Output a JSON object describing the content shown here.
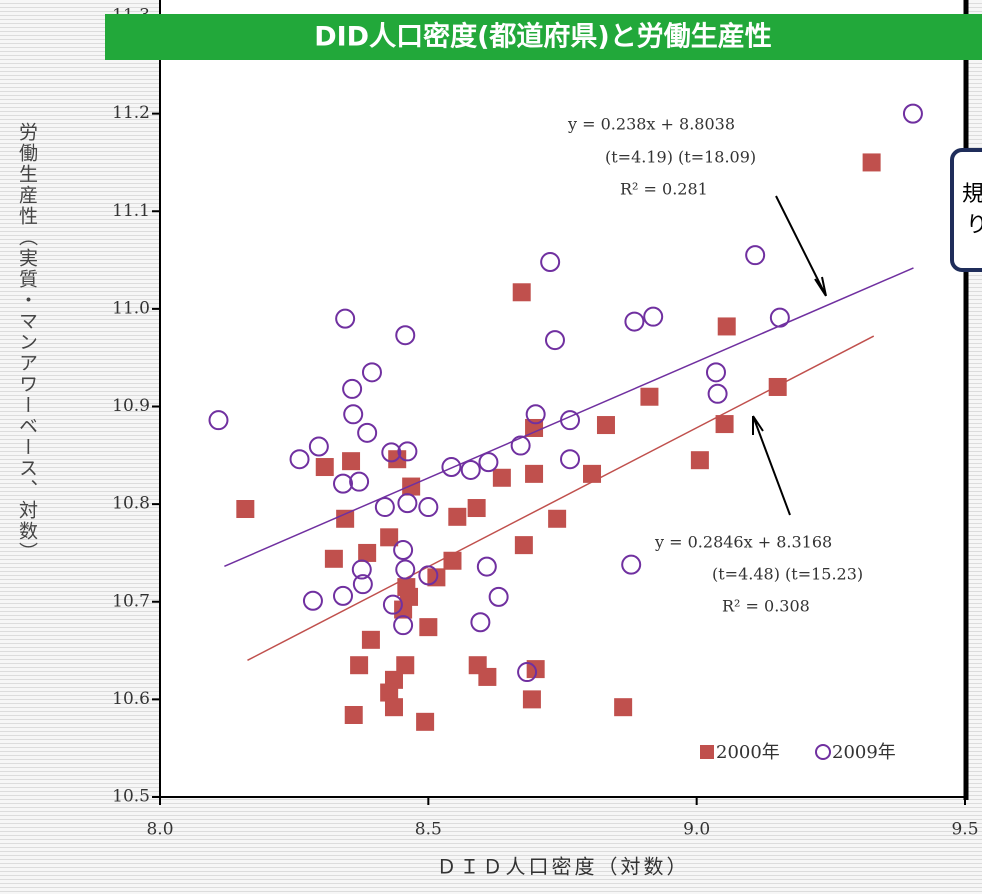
{
  "chart_data": {
    "type": "scatter",
    "title": "DID人口密度(都道府県)と労働生産性",
    "x_label": "ＤＩＤ人口密度（対数）",
    "y_label": "労働生産性（実質・マンアワーベース、対数）",
    "xlim": [
      8.0,
      9.5
    ],
    "xticks": [
      {
        "value": 8.0,
        "label": "8.0"
      },
      8.5,
      {
        "value": 9.0,
        "label": "9.0"
      },
      9.5
    ],
    "ylim": [
      10.5,
      11.3
    ],
    "yticks": [
      10.5,
      10.6,
      10.7,
      10.8,
      10.9,
      {
        "value": 11.0,
        "label": "11.0"
      },
      11.1,
      11.2,
      11.3
    ],
    "series": [
      {
        "name": "2000年",
        "color": "#c0504d",
        "marker": "square",
        "x": [
          8.159,
          8.307,
          8.356,
          8.345,
          8.324,
          8.386,
          8.427,
          8.442,
          8.468,
          8.464,
          8.459,
          8.453,
          8.393,
          8.371,
          8.457,
          8.436,
          8.427,
          8.436,
          8.361,
          8.494,
          8.5,
          8.515,
          8.545,
          8.554,
          8.59,
          8.637,
          8.592,
          8.61,
          8.674,
          8.678,
          8.697,
          8.697,
          8.7,
          8.693,
          8.74,
          8.805,
          8.831,
          8.863,
          8.912,
          9.006,
          9.052,
          9.056,
          9.151,
          9.326
        ],
        "values": [
          10.795,
          10.838,
          10.844,
          10.785,
          10.744,
          10.75,
          10.766,
          10.846,
          10.818,
          10.705,
          10.715,
          10.692,
          10.661,
          10.635,
          10.635,
          10.62,
          10.607,
          10.592,
          10.584,
          10.577,
          10.674,
          10.725,
          10.742,
          10.787,
          10.796,
          10.827,
          10.635,
          10.623,
          11.017,
          10.758,
          10.831,
          10.878,
          10.631,
          10.6,
          10.785,
          10.831,
          10.881,
          10.592,
          10.91,
          10.845,
          10.882,
          10.982,
          10.92,
          11.15
        ],
        "trendline": {
          "slope": 0.2846,
          "intercept": 8.3168,
          "x": [
            8.163,
            9.33
          ],
          "labels": [
            "y = 0.2846x + 8.3168",
            "(t=4.48)  (t=15.23)",
            "R² = 0.308"
          ]
        }
      },
      {
        "name": "2009年",
        "color": "#7030a0",
        "marker": "circle",
        "x": [
          8.109,
          8.26,
          8.296,
          8.285,
          8.345,
          8.341,
          8.341,
          8.358,
          8.36,
          8.371,
          8.386,
          8.395,
          8.376,
          8.378,
          8.419,
          8.431,
          8.461,
          8.457,
          8.461,
          8.453,
          8.457,
          8.434,
          8.453,
          8.5,
          8.5,
          8.543,
          8.579,
          8.612,
          8.609,
          8.631,
          8.597,
          8.672,
          8.7,
          8.727,
          8.736,
          8.764,
          8.764,
          8.684,
          8.884,
          8.919,
          8.878,
          9.036,
          9.039,
          9.109,
          9.155,
          9.403
        ],
        "values": [
          10.886,
          10.846,
          10.859,
          10.701,
          10.99,
          10.821,
          10.706,
          10.918,
          10.892,
          10.823,
          10.873,
          10.935,
          10.733,
          10.718,
          10.797,
          10.853,
          10.854,
          10.973,
          10.801,
          10.753,
          10.733,
          10.697,
          10.676,
          10.797,
          10.727,
          10.838,
          10.835,
          10.843,
          10.736,
          10.705,
          10.679,
          10.86,
          10.892,
          11.048,
          10.968,
          10.886,
          10.846,
          10.628,
          10.987,
          10.992,
          10.738,
          10.935,
          10.913,
          11.055,
          10.991,
          11.2
        ],
        "trendline": {
          "slope": 0.238,
          "intercept": 8.8038,
          "x": [
            8.12,
            9.404
          ],
          "labels": [
            "y = 0.238x + 8.8038",
            "(t=4.19)  (t=18.09)",
            "R² = 0.281"
          ]
        }
      }
    ],
    "callout": [
      "規",
      "り"
    ]
  }
}
